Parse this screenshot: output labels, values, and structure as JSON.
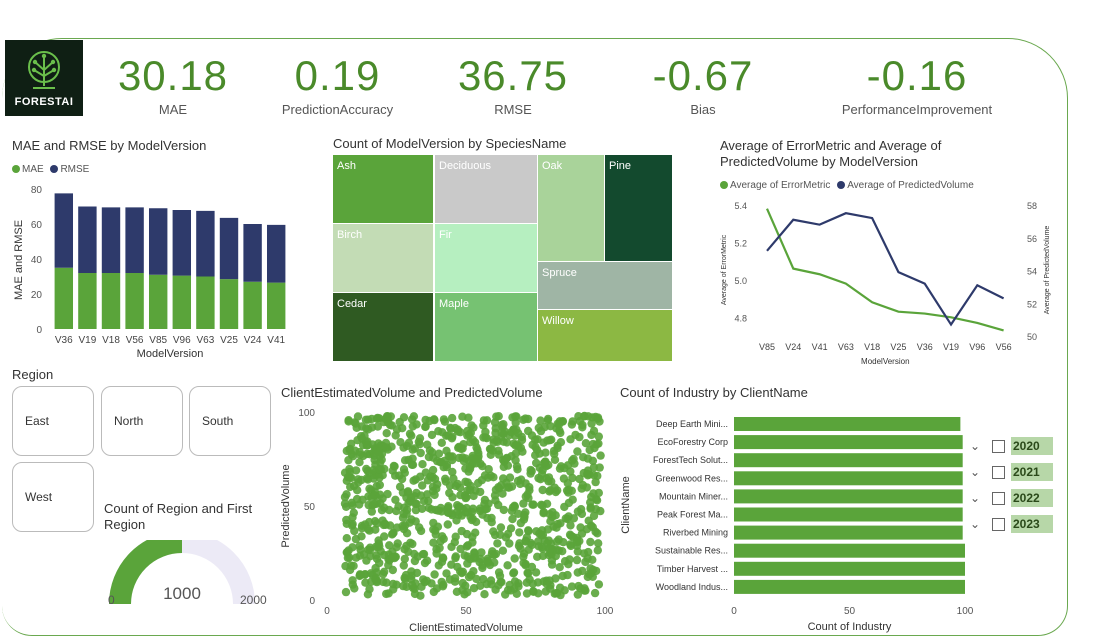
{
  "brand": {
    "name": "FORESTAI"
  },
  "kpis": [
    {
      "value": "30.18",
      "label": "MAE"
    },
    {
      "value": "0.19",
      "label": "PredictionAccuracy"
    },
    {
      "value": "36.75",
      "label": "RMSE"
    },
    {
      "value": "-0.67",
      "label": "Bias"
    },
    {
      "value": "-0.16",
      "label": "PerformanceImprovement"
    }
  ],
  "colors": {
    "green": "#5aa43a",
    "navy": "#2e3a6b",
    "accent": "#4a8a2a"
  },
  "region_slicer": {
    "title": "Region",
    "options": [
      "East",
      "North",
      "South",
      "West"
    ]
  },
  "year_slicer": {
    "years": [
      "2020",
      "2021",
      "2022",
      "2023"
    ]
  },
  "gauge": {
    "title": "Count of Region and First Region",
    "value": "1000",
    "min": "0",
    "max": "2000",
    "fraction": 0.5
  },
  "chart_data": [
    {
      "type": "bar",
      "title": "MAE and RMSE by ModelVersion",
      "xlabel": "ModelVersion",
      "ylabel": "MAE and RMSE",
      "ylim": [
        0,
        80
      ],
      "yticks": [
        "0",
        "20",
        "40",
        "60",
        "80"
      ],
      "stacked": true,
      "categories": [
        "V36",
        "V19",
        "V18",
        "V56",
        "V85",
        "V96",
        "V63",
        "V25",
        "V24",
        "V41"
      ],
      "series": [
        {
          "name": "MAE",
          "values": [
            35,
            32,
            32,
            32,
            31,
            30.5,
            30,
            28.5,
            27,
            26.5
          ]
        },
        {
          "name": "RMSE",
          "values": [
            42.5,
            38,
            37.5,
            37.5,
            38,
            37.5,
            37.5,
            35,
            33,
            33
          ]
        }
      ],
      "legend": "top-left"
    },
    {
      "type": "treemap",
      "title": "Count of ModelVersion by SpeciesName",
      "items": [
        {
          "name": "Ash",
          "color": "#5aa43a"
        },
        {
          "name": "Deciduous",
          "color": "#c9c9c9"
        },
        {
          "name": "Oak",
          "color": "#a9d39a"
        },
        {
          "name": "Pine",
          "color": "#134a2e"
        },
        {
          "name": "Birch",
          "color": "#c3dcb5"
        },
        {
          "name": "Fir",
          "color": "#b6efc0"
        },
        {
          "name": "Spruce",
          "color": "#9fb5a5"
        },
        {
          "name": "Cedar",
          "color": "#2f5a22"
        },
        {
          "name": "Maple",
          "color": "#76c272"
        },
        {
          "name": "Willow",
          "color": "#8cb843"
        }
      ]
    },
    {
      "type": "line",
      "title": "Average of ErrorMetric and Average of PredictedVolume by ModelVersion",
      "xlabel": "ModelVersion",
      "ylabel": "Average of ErrorMetric",
      "y2label": "Average of PredictedVolume",
      "categories": [
        "V85",
        "V24",
        "V41",
        "V63",
        "V18",
        "V25",
        "V36",
        "V19",
        "V96",
        "V56"
      ],
      "ylim": [
        4.7,
        5.4
      ],
      "yticks": [
        "4.8",
        "5.0",
        "5.2",
        "5.4"
      ],
      "y2lim": [
        50,
        58
      ],
      "y2ticks": [
        "50",
        "52",
        "54",
        "56",
        "58"
      ],
      "series": [
        {
          "name": "Average of ErrorMetric",
          "axis": "left",
          "values": [
            5.38,
            5.06,
            5.03,
            4.98,
            4.88,
            4.83,
            4.82,
            4.8,
            4.77,
            4.73
          ]
        },
        {
          "name": "Average of PredictedVolume",
          "axis": "right",
          "values": [
            55.2,
            57.1,
            56.8,
            57.5,
            57.2,
            53.9,
            53.2,
            50.7,
            53.1,
            52.3
          ]
        }
      ],
      "legend": "top"
    },
    {
      "type": "scatter",
      "title": "ClientEstimatedVolume and PredictedVolume",
      "xlabel": "ClientEstimatedVolume",
      "ylabel": "PredictedVolume",
      "xlim": [
        0,
        100
      ],
      "ylim": [
        0,
        100
      ],
      "xticks": [
        "0",
        "50",
        "100"
      ],
      "yticks": [
        "0",
        "50",
        "100"
      ],
      "point_count": 1000
    },
    {
      "type": "bar",
      "orientation": "horizontal",
      "title": "Count of Industry by ClientName",
      "xlabel": "Count of Industry",
      "ylabel": "ClientName",
      "xlim": [
        0,
        100
      ],
      "xticks": [
        "0",
        "50",
        "100"
      ],
      "categories": [
        "Deep Earth Mini...",
        "EcoForestry Corp",
        "ForestTech Solut...",
        "Greenwood Res...",
        "Mountain Miner...",
        "Peak Forest Ma...",
        "Riverbed Mining",
        "Sustainable Res...",
        "Timber Harvest ...",
        "Woodland Indus..."
      ],
      "values": [
        98,
        99,
        99,
        99,
        99,
        99,
        99,
        100,
        100,
        100
      ]
    }
  ]
}
